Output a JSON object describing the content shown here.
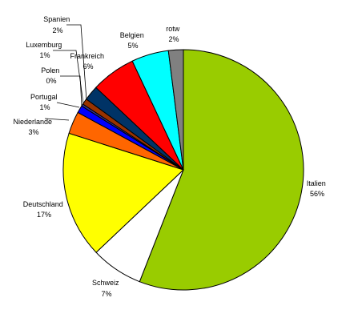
{
  "chart_data": {
    "type": "pie",
    "start_angle_deg": 0,
    "direction": "clockwise",
    "slices": [
      {
        "label": "Italien",
        "value": 56,
        "value_label": "56%",
        "color": "#99cc00"
      },
      {
        "label": "Schweiz",
        "value": 7,
        "value_label": "7%",
        "color": "#ffffff"
      },
      {
        "label": "Deutschland",
        "value": 17,
        "value_label": "17%",
        "color": "#ffff00"
      },
      {
        "label": "Niederlande",
        "value": 3,
        "value_label": "3%",
        "color": "#ff6600"
      },
      {
        "label": "Portugal",
        "value": 1,
        "value_label": "1%",
        "color": "#0000ff"
      },
      {
        "label": "Polen",
        "value": 0.3,
        "value_label": "0%",
        "color": "#333399"
      },
      {
        "label": "Luxemburg",
        "value": 0.8,
        "value_label": "1%",
        "color": "#993300"
      },
      {
        "label": "Spanien",
        "value": 2,
        "value_label": "2%",
        "color": "#003366"
      },
      {
        "label": "Frankreich",
        "value": 6,
        "value_label": "6%",
        "color": "#ff0000"
      },
      {
        "label": "Belgien",
        "value": 5,
        "value_label": "5%",
        "color": "#00ffff"
      },
      {
        "label": "rotw",
        "value": 2,
        "value_label": "2%",
        "color": "#808080"
      }
    ]
  }
}
